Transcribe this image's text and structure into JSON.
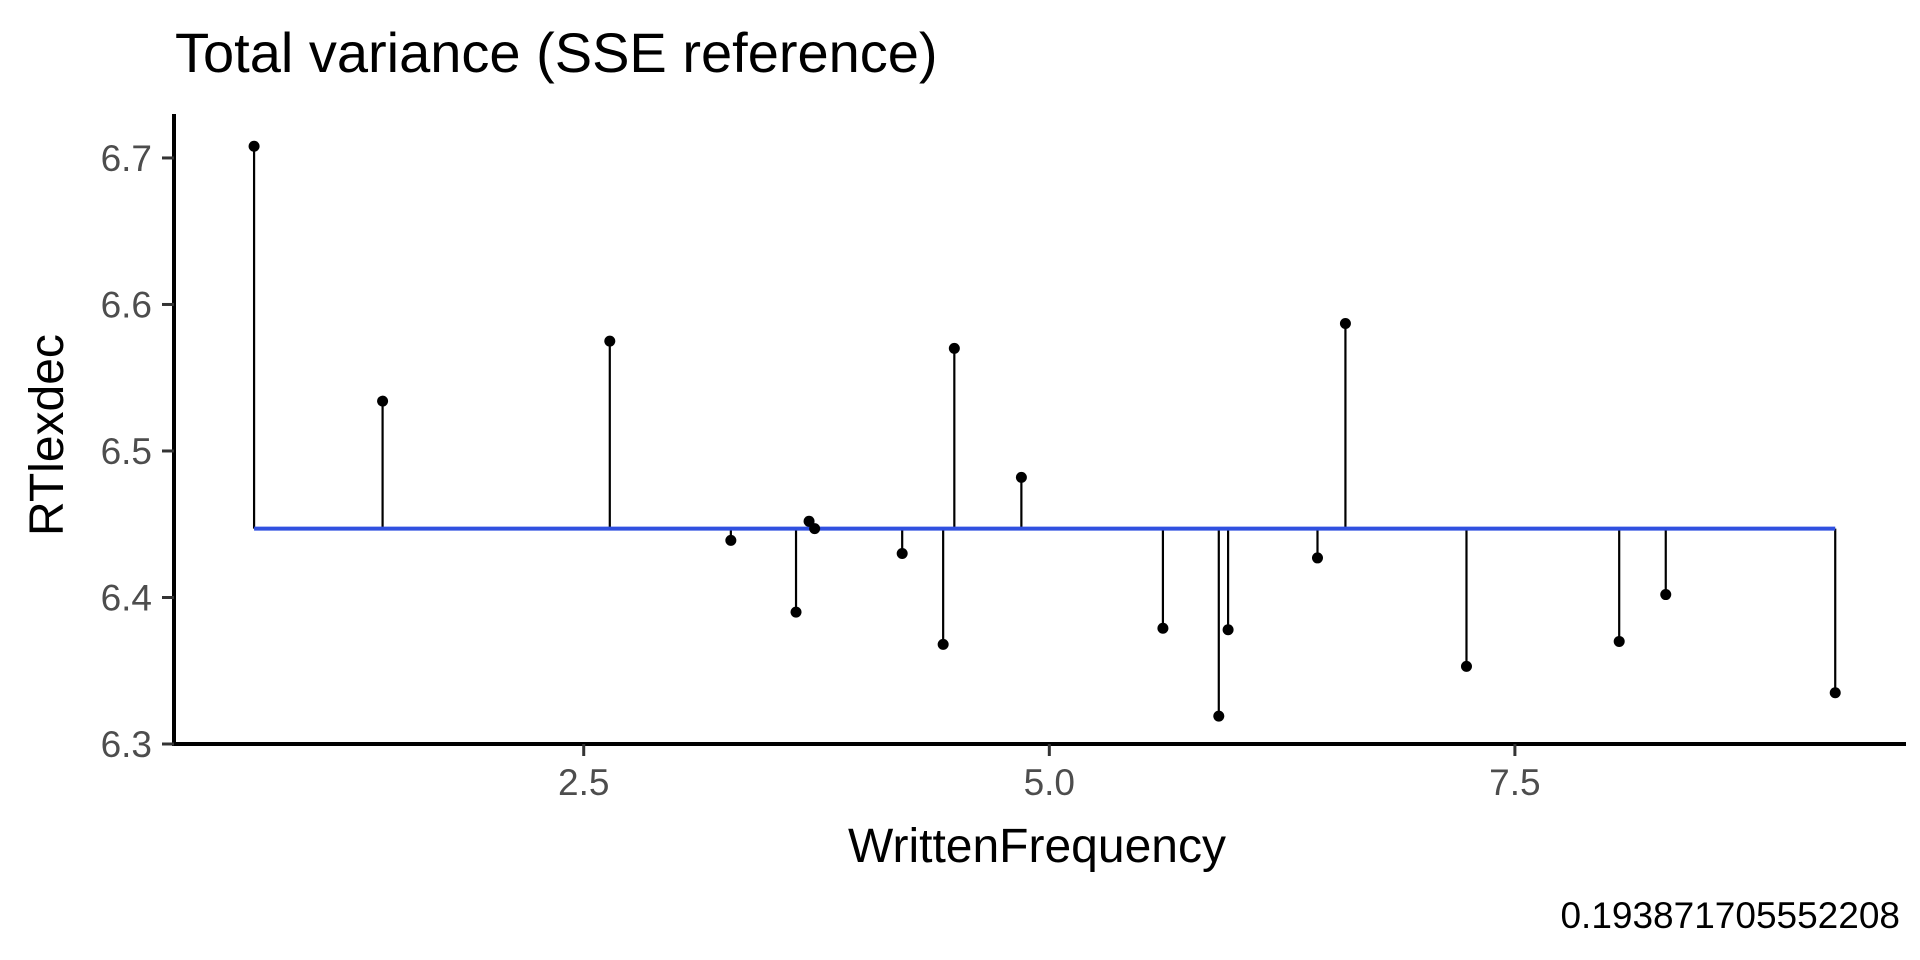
{
  "chart_data": {
    "type": "scatter",
    "title": "Total variance (SSE reference)",
    "xlabel": "WrittenFrequency",
    "ylabel": "RTlexdec",
    "caption": "0.193871705552208",
    "xlim": [
      0.3,
      9.6
    ],
    "ylim": [
      6.3,
      6.73
    ],
    "x_ticks": [
      {
        "value": 2.5,
        "label": "2.5"
      },
      {
        "value": 5.0,
        "label": "5.0"
      },
      {
        "value": 7.5,
        "label": "7.5"
      }
    ],
    "y_ticks": [
      {
        "value": 6.3,
        "label": "6.3"
      },
      {
        "value": 6.4,
        "label": "6.4"
      },
      {
        "value": 6.5,
        "label": "6.5"
      },
      {
        "value": 6.6,
        "label": "6.6"
      },
      {
        "value": 6.7,
        "label": "6.7"
      }
    ],
    "mean_line": {
      "y": 6.447,
      "x_start": 0.73,
      "x_end": 9.22,
      "color": "#3050e0"
    },
    "points": [
      {
        "x": 0.73,
        "y": 6.708
      },
      {
        "x": 1.42,
        "y": 6.534
      },
      {
        "x": 2.64,
        "y": 6.575
      },
      {
        "x": 3.29,
        "y": 6.439
      },
      {
        "x": 3.64,
        "y": 6.39
      },
      {
        "x": 3.71,
        "y": 6.452
      },
      {
        "x": 3.74,
        "y": 6.447
      },
      {
        "x": 4.21,
        "y": 6.43
      },
      {
        "x": 4.43,
        "y": 6.368
      },
      {
        "x": 4.49,
        "y": 6.57
      },
      {
        "x": 4.85,
        "y": 6.482
      },
      {
        "x": 5.61,
        "y": 6.379
      },
      {
        "x": 5.91,
        "y": 6.319
      },
      {
        "x": 5.96,
        "y": 6.378
      },
      {
        "x": 6.44,
        "y": 6.427
      },
      {
        "x": 6.59,
        "y": 6.587
      },
      {
        "x": 7.24,
        "y": 6.353
      },
      {
        "x": 8.06,
        "y": 6.37
      },
      {
        "x": 8.31,
        "y": 6.402
      },
      {
        "x": 9.22,
        "y": 6.335
      }
    ],
    "grid": false,
    "legend": "none"
  }
}
